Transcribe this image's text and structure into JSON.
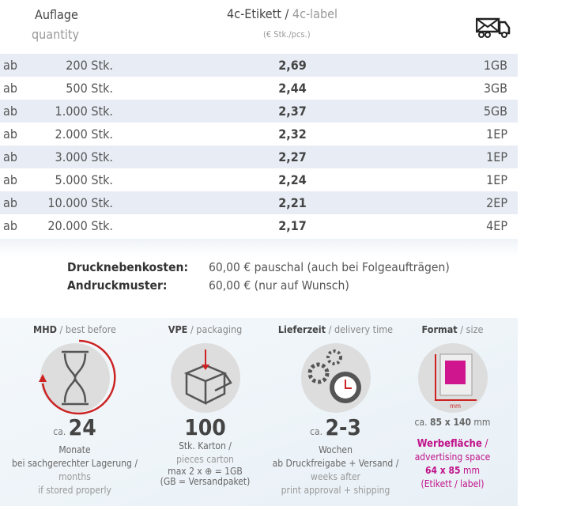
{
  "header": {
    "qty_de": "Auflage",
    "qty_en": "quantity",
    "product_de": "4c-Etikett",
    "product_sep": " / ",
    "product_en": "4c-label",
    "unit": "(€ Stk./pcs.)",
    "shipping_icon": "mail-truck-icon"
  },
  "rows": [
    {
      "ab": "ab",
      "qty": "200 Stk.",
      "price": "2,69",
      "ship": "1GB"
    },
    {
      "ab": "ab",
      "qty": "500 Stk.",
      "price": "2,44",
      "ship": "3GB"
    },
    {
      "ab": "ab",
      "qty": "1.000 Stk.",
      "price": "2,37",
      "ship": "5GB"
    },
    {
      "ab": "ab",
      "qty": "2.000 Stk.",
      "price": "2,32",
      "ship": "1EP"
    },
    {
      "ab": "ab",
      "qty": "3.000 Stk.",
      "price": "2,27",
      "ship": "1EP"
    },
    {
      "ab": "ab",
      "qty": "5.000 Stk.",
      "price": "2,24",
      "ship": "1EP"
    },
    {
      "ab": "ab",
      "qty": "10.000 Stk.",
      "price": "2,21",
      "ship": "2EP"
    },
    {
      "ab": "ab",
      "qty": "20.000 Stk.",
      "price": "2,17",
      "ship": "4EP"
    }
  ],
  "extras": [
    {
      "label": "Drucknebenkosten:",
      "value": "60,00 € pauschal (auch bei Folgeaufträgen)"
    },
    {
      "label": "Andruckmuster:",
      "value": "60,00 € (nur auf Wunsch)"
    }
  ],
  "info": {
    "mhd": {
      "title": "MHD",
      "title_en": " / best before",
      "ca": "ca. ",
      "value": "24",
      "l1": "Monate",
      "l2": "bei sachgerechter Lagerung /",
      "l3": "months",
      "l4": "if stored properly"
    },
    "vpe": {
      "title": "VPE",
      "title_en": " / packaging",
      "value": "100",
      "l1": "Stk. Karton /",
      "l2": "pieces carton",
      "l3": "max 2 x ⊕ = 1GB",
      "l4": "(GB = Versandpaket)"
    },
    "lieferzeit": {
      "title": "Lieferzeit",
      "title_en": " / delivery time",
      "ca": "ca. ",
      "value": "2-3",
      "l1": "Wochen",
      "l2": "ab Druckfreigabe + Versand /",
      "l3": "weeks after",
      "l4": "print approval + shipping"
    },
    "format": {
      "title": "Format",
      "title_en": " / size",
      "mm": "mm",
      "size_ca": "ca. ",
      "size": "85 x 140",
      "size_unit": " mm",
      "ad_de": "Werbefläche",
      "ad_sep": " /",
      "ad_en": "advertising space",
      "ad_size": "64 x 85",
      "ad_unit": " mm",
      "ad_note": "(Etikett / label)"
    }
  }
}
